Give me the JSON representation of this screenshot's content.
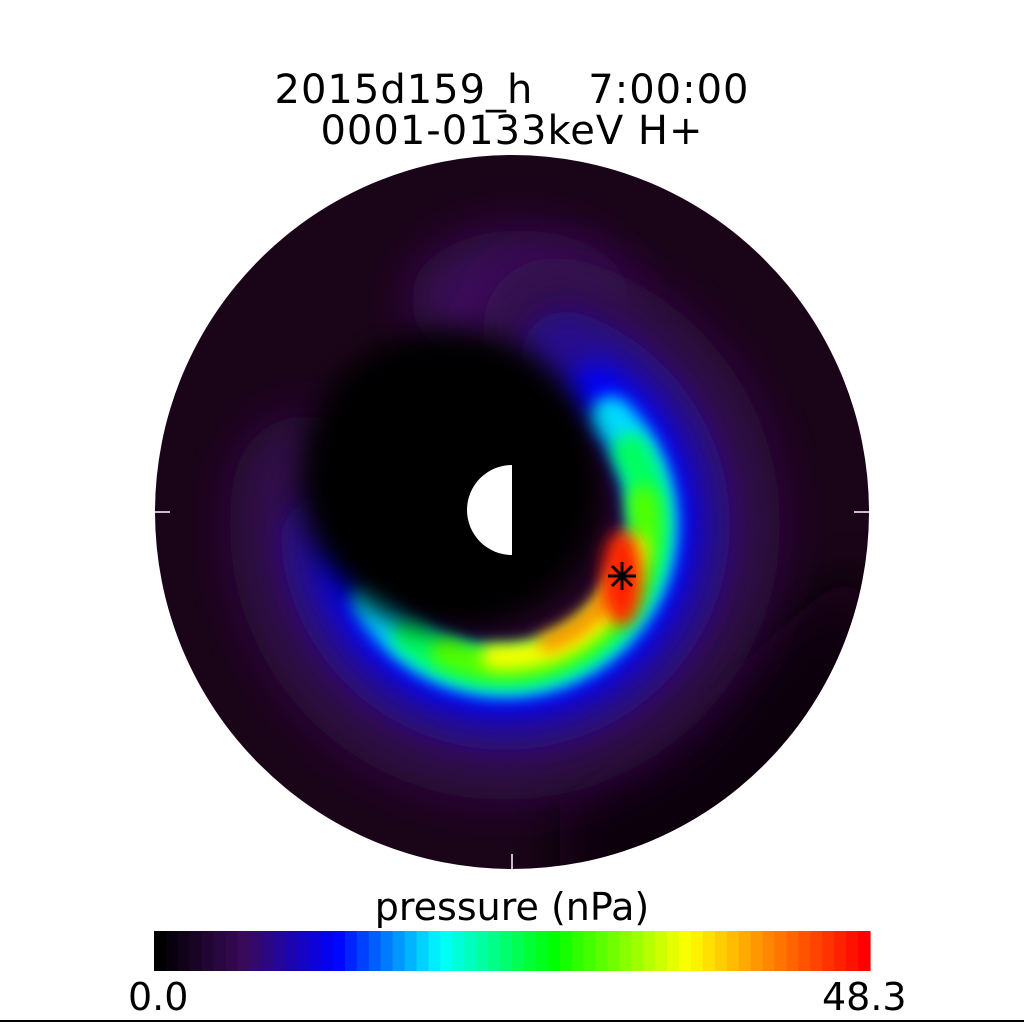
{
  "chart_data": {
    "type": "heatmap",
    "projection": "polar equatorial plane",
    "title": "2015d159_h    7:00:00",
    "subtitle": "0001-0133keV H+",
    "colorbar": {
      "label": "pressure (nPa)",
      "min_label": "0.0",
      "max_label": "48.3",
      "range": [
        0.0,
        48.3
      ],
      "colormap": "rainbow",
      "stops": [
        "#000000",
        "#3a0a5a",
        "#0000ff",
        "#00ffff",
        "#00ff00",
        "#ffff00",
        "#ff8000",
        "#ff0000"
      ]
    },
    "peak_marker": "asterisk",
    "earth": "half-lit (dayside white, nightside black)",
    "colors": {
      "background_disc": "#1a0418",
      "inner_region": "#000000"
    }
  }
}
